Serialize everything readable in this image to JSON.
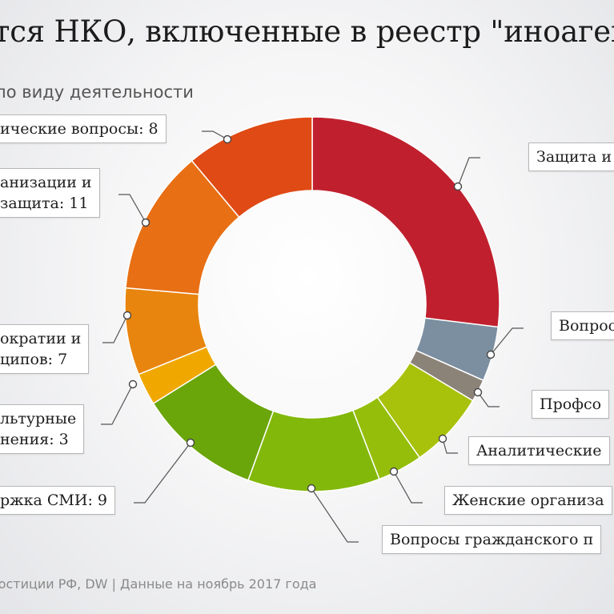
{
  "title": "тся НКО, включенные в реестр \"иноаген",
  "subtitle": "по виду деятельности",
  "source": "юстиции РФ, DW | Данные на ноябрь 2017 года",
  "chart_data": {
    "type": "pie",
    "style": "donut",
    "slices": [
      {
        "label_lines": [
          "Защита и"
        ],
        "value": null,
        "color": "#c0202e"
      },
      {
        "label_lines": [
          "Вопрос"
        ],
        "value": null,
        "color": "#7b8fa0"
      },
      {
        "label_lines": [
          "Профсо"
        ],
        "value": null,
        "color": "#8c8378"
      },
      {
        "label_lines": [
          "Аналитические"
        ],
        "value": null,
        "color": "#a8c10a"
      },
      {
        "label_lines": [
          "Женские организа"
        ],
        "value": null,
        "color": "#94be0a"
      },
      {
        "label_lines": [
          "Вопросы гражданского п"
        ],
        "value": null,
        "color": "#82b80a"
      },
      {
        "label_lines": [
          "ржка СМИ: 9"
        ],
        "value": 9,
        "color": "#6aa50a"
      },
      {
        "label_lines": [
          "льтурные",
          "нения: 3"
        ],
        "value": 3,
        "color": "#f0a800"
      },
      {
        "label_lines": [
          "ократии и",
          "ципов: 7"
        ],
        "value": 7,
        "color": "#e8850e"
      },
      {
        "label_lines": [
          "анизации и",
          "защита: 11"
        ],
        "value": 11,
        "color": "#e86f14"
      },
      {
        "label_lines": [
          "ические вопросы: 8"
        ],
        "value": 8,
        "color": "#e04a14"
      }
    ]
  }
}
